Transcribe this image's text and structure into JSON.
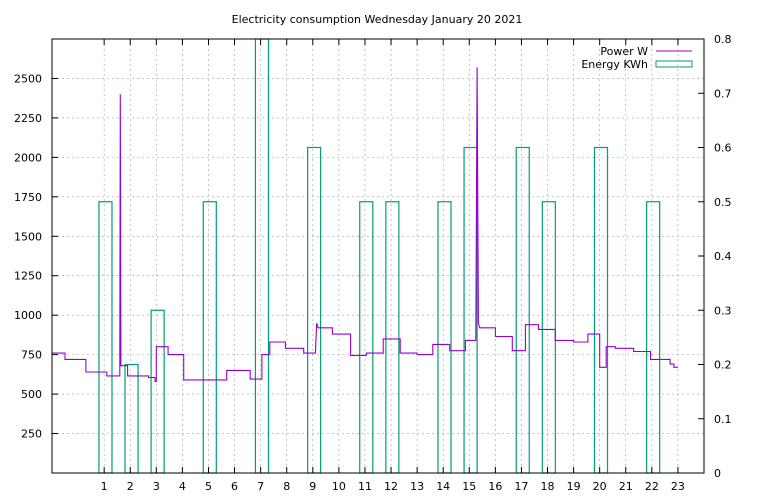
{
  "chart_data": {
    "type": "line",
    "title": "Electricity consumption Wednesday January 20 2021",
    "x": {
      "range": [
        -1,
        24
      ],
      "ticks": [
        1,
        2,
        3,
        4,
        5,
        6,
        7,
        8,
        9,
        10,
        11,
        12,
        13,
        14,
        15,
        16,
        17,
        18,
        19,
        20,
        21,
        22,
        23
      ]
    },
    "y_left": {
      "range": [
        0,
        2750
      ],
      "ticks": [
        250,
        500,
        750,
        1000,
        1250,
        1500,
        1750,
        2000,
        2250,
        2500
      ]
    },
    "y_right": {
      "range": [
        0,
        0.8
      ],
      "ticks": [
        0,
        0.1,
        0.2,
        0.3,
        0.4,
        0.5,
        0.6,
        0.7,
        0.8
      ]
    },
    "grid": true,
    "legend_position": "top-right",
    "colors": {
      "power": "#9400d3",
      "energy": "#009e73",
      "grid": "#a0a0a0"
    },
    "series": [
      {
        "name": "Power W",
        "axis": "left",
        "style": "steps",
        "points": [
          [
            -1.0,
            760
          ],
          [
            -0.5,
            760
          ],
          [
            -0.5,
            720
          ],
          [
            0.3,
            720
          ],
          [
            0.3,
            640
          ],
          [
            1.1,
            640
          ],
          [
            1.1,
            615
          ],
          [
            1.6,
            615
          ],
          [
            1.6,
            680
          ],
          [
            1.62,
            2400
          ],
          [
            1.64,
            680
          ],
          [
            1.9,
            680
          ],
          [
            1.9,
            615
          ],
          [
            2.7,
            615
          ],
          [
            2.7,
            605
          ],
          [
            2.95,
            605
          ],
          [
            2.95,
            580
          ],
          [
            3.0,
            580
          ],
          [
            3.0,
            800
          ],
          [
            3.45,
            800
          ],
          [
            3.45,
            750
          ],
          [
            4.05,
            750
          ],
          [
            4.05,
            590
          ],
          [
            5.7,
            590
          ],
          [
            5.7,
            650
          ],
          [
            6.6,
            650
          ],
          [
            6.6,
            595
          ],
          [
            7.05,
            595
          ],
          [
            7.05,
            750
          ],
          [
            7.35,
            750
          ],
          [
            7.35,
            830
          ],
          [
            7.95,
            830
          ],
          [
            7.95,
            790
          ],
          [
            8.65,
            790
          ],
          [
            8.65,
            760
          ],
          [
            9.1,
            760
          ],
          [
            9.15,
            950
          ],
          [
            9.2,
            920
          ],
          [
            9.75,
            920
          ],
          [
            9.75,
            880
          ],
          [
            10.45,
            880
          ],
          [
            10.45,
            745
          ],
          [
            11.05,
            745
          ],
          [
            11.05,
            760
          ],
          [
            11.7,
            760
          ],
          [
            11.7,
            850
          ],
          [
            12.35,
            850
          ],
          [
            12.35,
            760
          ],
          [
            13.0,
            760
          ],
          [
            13.0,
            750
          ],
          [
            13.6,
            750
          ],
          [
            13.6,
            815
          ],
          [
            14.25,
            815
          ],
          [
            14.25,
            775
          ],
          [
            14.85,
            775
          ],
          [
            14.85,
            840
          ],
          [
            15.25,
            840
          ],
          [
            15.3,
            2570
          ],
          [
            15.35,
            950
          ],
          [
            15.4,
            920
          ],
          [
            16.0,
            920
          ],
          [
            16.0,
            865
          ],
          [
            16.65,
            865
          ],
          [
            16.65,
            775
          ],
          [
            17.15,
            775
          ],
          [
            17.15,
            940
          ],
          [
            17.65,
            940
          ],
          [
            17.65,
            910
          ],
          [
            18.3,
            910
          ],
          [
            18.3,
            840
          ],
          [
            19.0,
            840
          ],
          [
            19.0,
            830
          ],
          [
            19.55,
            830
          ],
          [
            19.55,
            880
          ],
          [
            20.0,
            880
          ],
          [
            20.0,
            670
          ],
          [
            20.25,
            670
          ],
          [
            20.25,
            800
          ],
          [
            20.6,
            800
          ],
          [
            20.6,
            790
          ],
          [
            21.3,
            790
          ],
          [
            21.3,
            770
          ],
          [
            21.95,
            770
          ],
          [
            21.95,
            720
          ],
          [
            22.7,
            720
          ],
          [
            22.7,
            690
          ],
          [
            22.85,
            690
          ],
          [
            22.85,
            670
          ],
          [
            23.0,
            670
          ]
        ]
      },
      {
        "name": "Energy KWh",
        "axis": "right",
        "style": "bars",
        "bars": [
          {
            "x0": 0.8,
            "x1": 1.3,
            "y": 0.5
          },
          {
            "x0": 1.8,
            "x1": 2.3,
            "y": 0.2
          },
          {
            "x0": 2.8,
            "x1": 3.3,
            "y": 0.3
          },
          {
            "x0": 4.8,
            "x1": 5.3,
            "y": 0.5
          },
          {
            "x0": 6.8,
            "x1": 7.3,
            "y": 0.8
          },
          {
            "x0": 8.8,
            "x1": 9.3,
            "y": 0.6
          },
          {
            "x0": 10.8,
            "x1": 11.3,
            "y": 0.5
          },
          {
            "x0": 11.8,
            "x1": 12.3,
            "y": 0.5
          },
          {
            "x0": 13.8,
            "x1": 14.3,
            "y": 0.5
          },
          {
            "x0": 14.8,
            "x1": 15.3,
            "y": 0.6
          },
          {
            "x0": 16.8,
            "x1": 17.3,
            "y": 0.6
          },
          {
            "x0": 17.8,
            "x1": 18.3,
            "y": 0.5
          },
          {
            "x0": 19.8,
            "x1": 20.3,
            "y": 0.6
          },
          {
            "x0": 21.8,
            "x1": 22.3,
            "y": 0.5
          }
        ]
      }
    ]
  }
}
